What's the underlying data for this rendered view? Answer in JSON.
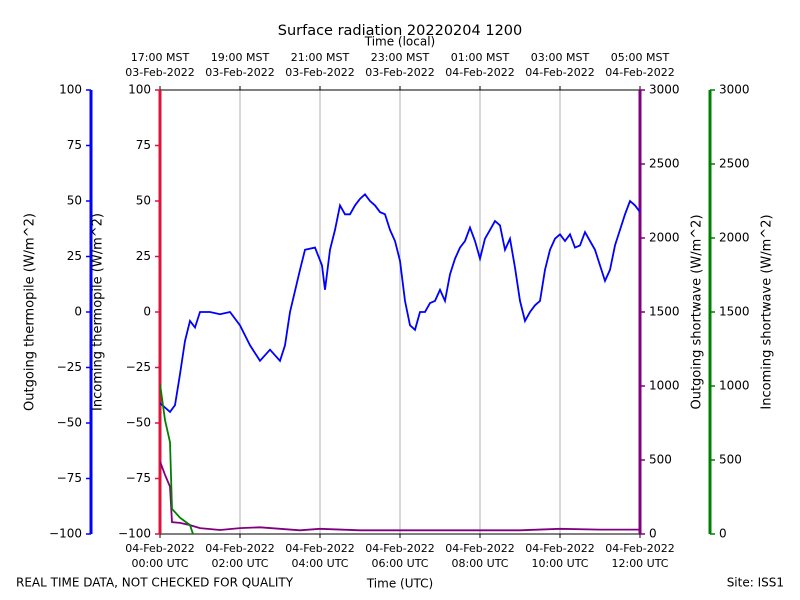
{
  "chart_data": {
    "type": "line",
    "title": "Surface radiation 20220204 1200",
    "xlabel": "Time (UTC)",
    "x2label": "Time (local)",
    "footer_left": "REAL TIME DATA, NOT CHECKED FOR QUALITY",
    "footer_right": "Site: ISS1",
    "grid": true,
    "xlim": [
      0,
      12
    ],
    "xticks": [
      {
        "value": 0,
        "label": [
          "04-Feb-2022",
          "00:00 UTC"
        ]
      },
      {
        "value": 2,
        "label": [
          "04-Feb-2022",
          "02:00 UTC"
        ]
      },
      {
        "value": 4,
        "label": [
          "04-Feb-2022",
          "04:00 UTC"
        ]
      },
      {
        "value": 6,
        "label": [
          "04-Feb-2022",
          "06:00 UTC"
        ]
      },
      {
        "value": 8,
        "label": [
          "04-Feb-2022",
          "08:00 UTC"
        ]
      },
      {
        "value": 10,
        "label": [
          "04-Feb-2022",
          "10:00 UTC"
        ]
      },
      {
        "value": 12,
        "label": [
          "04-Feb-2022",
          "12:00 UTC"
        ]
      }
    ],
    "x2ticks": [
      {
        "value": 0,
        "label": [
          "17:00 MST",
          "03-Feb-2022"
        ]
      },
      {
        "value": 2,
        "label": [
          "19:00 MST",
          "03-Feb-2022"
        ]
      },
      {
        "value": 4,
        "label": [
          "21:00 MST",
          "03-Feb-2022"
        ]
      },
      {
        "value": 6,
        "label": [
          "23:00 MST",
          "03-Feb-2022"
        ]
      },
      {
        "value": 8,
        "label": [
          "01:00 MST",
          "04-Feb-2022"
        ]
      },
      {
        "value": 10,
        "label": [
          "03:00 MST",
          "04-Feb-2022"
        ]
      },
      {
        "value": 12,
        "label": [
          "05:00 MST",
          "04-Feb-2022"
        ]
      }
    ],
    "axes": [
      {
        "label": "Outgoing thermopile (W/m^2)",
        "color": "#0000ff",
        "side": "left",
        "ylim": [
          -100,
          100
        ],
        "yticks": [
          {
            "value": -100,
            "label": "−100"
          },
          {
            "value": -75,
            "label": "−75"
          },
          {
            "value": -50,
            "label": "−50"
          },
          {
            "value": -25,
            "label": "−25"
          },
          0,
          25,
          50,
          75,
          100
        ]
      },
      {
        "label": "Incoming thermopile (W/m^2)",
        "color": "#dc143c",
        "side": "left",
        "ylim": [
          -100,
          100
        ],
        "yticks": [
          {
            "value": -100,
            "label": "−100"
          },
          {
            "value": -75,
            "label": "−75"
          },
          {
            "value": -50,
            "label": "−50"
          },
          {
            "value": -25,
            "label": "−25"
          },
          0,
          25,
          50,
          75,
          100
        ]
      },
      {
        "label": "Outgoing shortwave (W/m^2)",
        "color": "#800080",
        "side": "right",
        "ylim": [
          0,
          3000
        ],
        "yticks": [
          0,
          500,
          1000,
          1500,
          2000,
          2500,
          3000
        ]
      },
      {
        "label": "Incoming shortwave (W/m^2)",
        "color": "#008000",
        "side": "right",
        "ylim": [
          0,
          3000
        ],
        "yticks": [
          0,
          500,
          1000,
          1500,
          2000,
          2500,
          3000
        ]
      }
    ],
    "series": [
      {
        "axis": 0,
        "color": "#0000ff",
        "x": [
          0,
          0.125,
          0.25,
          0.375,
          0.5,
          0.625,
          0.75,
          0.875,
          1,
          1.25,
          1.5,
          1.75,
          2,
          2.25,
          2.5,
          2.75,
          3,
          3.125,
          3.25,
          3.5,
          3.625,
          3.875,
          4.05,
          4.125,
          4.25,
          4.375,
          4.5,
          4.625,
          4.75,
          4.875,
          5,
          5.125,
          5.25,
          5.375,
          5.5,
          5.625,
          5.75,
          5.875,
          6,
          6.125,
          6.25,
          6.375,
          6.5,
          6.625,
          6.75,
          6.875,
          7,
          7.125,
          7.25,
          7.375,
          7.5,
          7.625,
          7.75,
          7.875,
          8,
          8.125,
          8.25,
          8.375,
          8.5,
          8.625,
          8.75,
          8.875,
          9,
          9.125,
          9.25,
          9.375,
          9.5,
          9.625,
          9.75,
          9.875,
          10,
          10.125,
          10.25,
          10.375,
          10.5,
          10.625,
          10.75,
          10.875,
          11,
          11.125,
          11.25,
          11.375,
          11.5,
          11.625,
          11.75,
          11.875,
          12
        ],
        "values": [
          -41,
          -43,
          -45,
          -42,
          -28,
          -13,
          -4,
          -7,
          0,
          0,
          -1,
          0,
          -6,
          -15,
          -22,
          -17,
          -22,
          -15,
          0,
          19,
          28,
          29,
          21,
          10,
          28,
          37,
          48,
          44,
          44,
          48,
          51,
          53,
          50,
          48,
          45,
          44,
          37,
          32,
          23,
          5,
          -6,
          -8,
          0,
          0,
          4,
          5,
          10,
          5,
          17,
          24,
          29,
          32,
          38,
          32,
          24,
          33,
          37,
          41,
          39,
          28,
          33,
          20,
          5,
          -4,
          0,
          3,
          5,
          19,
          28,
          33,
          35,
          32,
          35,
          29,
          30,
          36,
          32,
          28,
          21,
          14,
          19,
          30,
          37,
          44,
          50,
          48,
          45
        ]
      },
      {
        "axis": 2,
        "color": "#800080",
        "x": [
          0,
          0.125,
          0.25,
          0.3,
          0.5,
          0.75,
          1,
          1.5,
          2,
          2.5,
          3.5,
          4,
          5,
          6,
          7,
          8,
          9,
          10,
          11,
          12
        ],
        "values": [
          490,
          400,
          320,
          80,
          75,
          60,
          40,
          27,
          40,
          45,
          25,
          35,
          25,
          25,
          25,
          25,
          25,
          35,
          30,
          30
        ]
      },
      {
        "axis": 3,
        "color": "#008000",
        "x": [
          0,
          0.125,
          0.25,
          0.3,
          0.5,
          0.75,
          0.825
        ],
        "values": [
          1015,
          770,
          620,
          170,
          110,
          60,
          0
        ]
      }
    ]
  }
}
